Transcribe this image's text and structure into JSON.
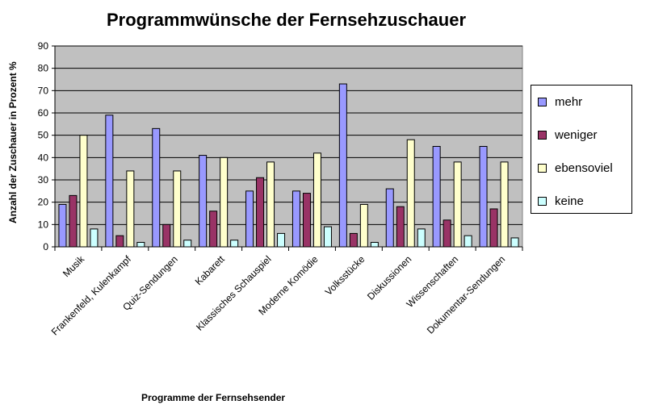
{
  "chart_data": {
    "type": "bar",
    "title": "Programmwünsche der Fernsehzuschauer",
    "xlabel": "Programme der Fernsehsender",
    "ylabel": "Anzahl der Zuschauer in Prozent %",
    "ylim": [
      0,
      90
    ],
    "yticks": [
      "0",
      "10",
      "20",
      "30",
      "40",
      "50",
      "60",
      "70",
      "80",
      "90"
    ],
    "grid": true,
    "legend_position": "right",
    "plot_background": "#c0c0c0",
    "categories": [
      "Musik",
      "Frankenfeld, Kulenkampf",
      "Quiz-Sendungen",
      "Kabarett",
      "Klassisches Schauspiel",
      "Moderne Komödie",
      "Volksstücke",
      "Diskussionen",
      "Wissenschaften",
      "Dokumentar-Sendungen"
    ],
    "series": [
      {
        "name": "mehr",
        "color": "#9999ff",
        "values": [
          19,
          59,
          53,
          41,
          25,
          25,
          73,
          26,
          45,
          45
        ]
      },
      {
        "name": "weniger",
        "color": "#993366",
        "values": [
          23,
          5,
          10,
          16,
          31,
          24,
          6,
          18,
          12,
          17
        ]
      },
      {
        "name": "ebensoviel",
        "color": "#ffffcc",
        "values": [
          50,
          34,
          34,
          40,
          38,
          42,
          19,
          48,
          38,
          38
        ]
      },
      {
        "name": "keine",
        "color": "#ccffff",
        "values": [
          8,
          2,
          3,
          3,
          6,
          9,
          2,
          8,
          5,
          4
        ]
      }
    ]
  }
}
